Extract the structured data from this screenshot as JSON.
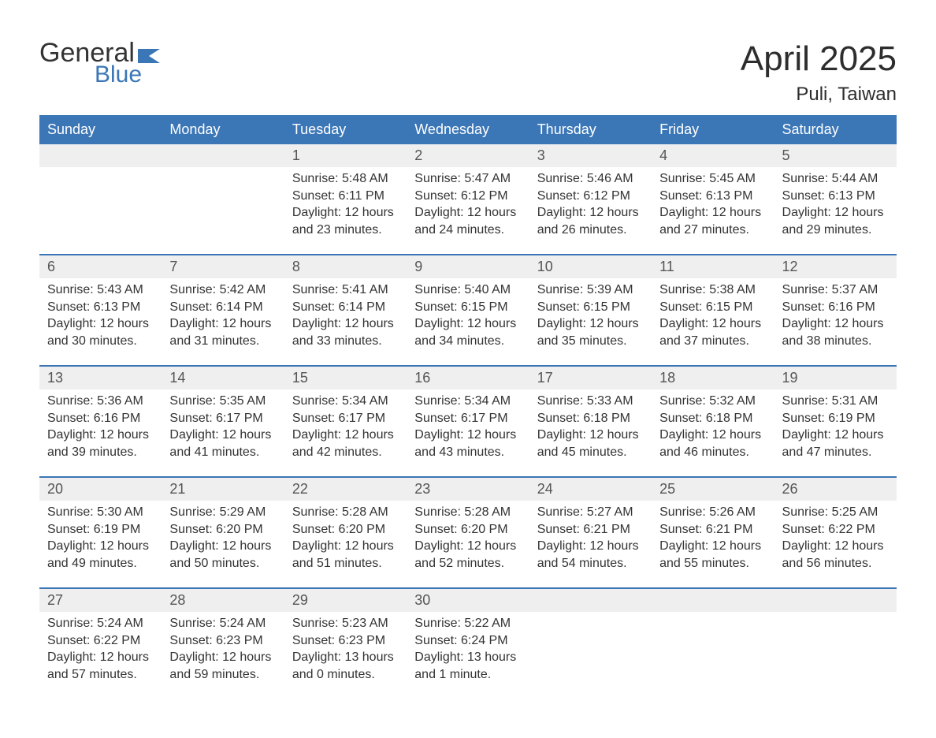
{
  "brand": {
    "word1": "General",
    "word2": "Blue",
    "text_color": "#333333",
    "accent_color": "#3b76b6"
  },
  "title": "April 2025",
  "location": "Puli, Taiwan",
  "colors": {
    "header_bg": "#3b76b6",
    "header_text": "#ffffff",
    "date_row_bg": "#efefef",
    "date_text": "#555555",
    "body_text": "#333333",
    "week_divider": "#3b76b6",
    "background": "#ffffff"
  },
  "typography": {
    "title_fontsize": 44,
    "location_fontsize": 24,
    "header_fontsize": 18,
    "date_fontsize": 18,
    "body_fontsize": 16,
    "font_family": "Arial"
  },
  "day_names": [
    "Sunday",
    "Monday",
    "Tuesday",
    "Wednesday",
    "Thursday",
    "Friday",
    "Saturday"
  ],
  "weeks": [
    {
      "dates": [
        "",
        "",
        "1",
        "2",
        "3",
        "4",
        "5"
      ],
      "cells": [
        {
          "sunrise": "",
          "sunset": "",
          "daylight": ""
        },
        {
          "sunrise": "",
          "sunset": "",
          "daylight": ""
        },
        {
          "sunrise": "Sunrise: 5:48 AM",
          "sunset": "Sunset: 6:11 PM",
          "daylight": "Daylight: 12 hours and 23 minutes."
        },
        {
          "sunrise": "Sunrise: 5:47 AM",
          "sunset": "Sunset: 6:12 PM",
          "daylight": "Daylight: 12 hours and 24 minutes."
        },
        {
          "sunrise": "Sunrise: 5:46 AM",
          "sunset": "Sunset: 6:12 PM",
          "daylight": "Daylight: 12 hours and 26 minutes."
        },
        {
          "sunrise": "Sunrise: 5:45 AM",
          "sunset": "Sunset: 6:13 PM",
          "daylight": "Daylight: 12 hours and 27 minutes."
        },
        {
          "sunrise": "Sunrise: 5:44 AM",
          "sunset": "Sunset: 6:13 PM",
          "daylight": "Daylight: 12 hours and 29 minutes."
        }
      ]
    },
    {
      "dates": [
        "6",
        "7",
        "8",
        "9",
        "10",
        "11",
        "12"
      ],
      "cells": [
        {
          "sunrise": "Sunrise: 5:43 AM",
          "sunset": "Sunset: 6:13 PM",
          "daylight": "Daylight: 12 hours and 30 minutes."
        },
        {
          "sunrise": "Sunrise: 5:42 AM",
          "sunset": "Sunset: 6:14 PM",
          "daylight": "Daylight: 12 hours and 31 minutes."
        },
        {
          "sunrise": "Sunrise: 5:41 AM",
          "sunset": "Sunset: 6:14 PM",
          "daylight": "Daylight: 12 hours and 33 minutes."
        },
        {
          "sunrise": "Sunrise: 5:40 AM",
          "sunset": "Sunset: 6:15 PM",
          "daylight": "Daylight: 12 hours and 34 minutes."
        },
        {
          "sunrise": "Sunrise: 5:39 AM",
          "sunset": "Sunset: 6:15 PM",
          "daylight": "Daylight: 12 hours and 35 minutes."
        },
        {
          "sunrise": "Sunrise: 5:38 AM",
          "sunset": "Sunset: 6:15 PM",
          "daylight": "Daylight: 12 hours and 37 minutes."
        },
        {
          "sunrise": "Sunrise: 5:37 AM",
          "sunset": "Sunset: 6:16 PM",
          "daylight": "Daylight: 12 hours and 38 minutes."
        }
      ]
    },
    {
      "dates": [
        "13",
        "14",
        "15",
        "16",
        "17",
        "18",
        "19"
      ],
      "cells": [
        {
          "sunrise": "Sunrise: 5:36 AM",
          "sunset": "Sunset: 6:16 PM",
          "daylight": "Daylight: 12 hours and 39 minutes."
        },
        {
          "sunrise": "Sunrise: 5:35 AM",
          "sunset": "Sunset: 6:17 PM",
          "daylight": "Daylight: 12 hours and 41 minutes."
        },
        {
          "sunrise": "Sunrise: 5:34 AM",
          "sunset": "Sunset: 6:17 PM",
          "daylight": "Daylight: 12 hours and 42 minutes."
        },
        {
          "sunrise": "Sunrise: 5:34 AM",
          "sunset": "Sunset: 6:17 PM",
          "daylight": "Daylight: 12 hours and 43 minutes."
        },
        {
          "sunrise": "Sunrise: 5:33 AM",
          "sunset": "Sunset: 6:18 PM",
          "daylight": "Daylight: 12 hours and 45 minutes."
        },
        {
          "sunrise": "Sunrise: 5:32 AM",
          "sunset": "Sunset: 6:18 PM",
          "daylight": "Daylight: 12 hours and 46 minutes."
        },
        {
          "sunrise": "Sunrise: 5:31 AM",
          "sunset": "Sunset: 6:19 PM",
          "daylight": "Daylight: 12 hours and 47 minutes."
        }
      ]
    },
    {
      "dates": [
        "20",
        "21",
        "22",
        "23",
        "24",
        "25",
        "26"
      ],
      "cells": [
        {
          "sunrise": "Sunrise: 5:30 AM",
          "sunset": "Sunset: 6:19 PM",
          "daylight": "Daylight: 12 hours and 49 minutes."
        },
        {
          "sunrise": "Sunrise: 5:29 AM",
          "sunset": "Sunset: 6:20 PM",
          "daylight": "Daylight: 12 hours and 50 minutes."
        },
        {
          "sunrise": "Sunrise: 5:28 AM",
          "sunset": "Sunset: 6:20 PM",
          "daylight": "Daylight: 12 hours and 51 minutes."
        },
        {
          "sunrise": "Sunrise: 5:28 AM",
          "sunset": "Sunset: 6:20 PM",
          "daylight": "Daylight: 12 hours and 52 minutes."
        },
        {
          "sunrise": "Sunrise: 5:27 AM",
          "sunset": "Sunset: 6:21 PM",
          "daylight": "Daylight: 12 hours and 54 minutes."
        },
        {
          "sunrise": "Sunrise: 5:26 AM",
          "sunset": "Sunset: 6:21 PM",
          "daylight": "Daylight: 12 hours and 55 minutes."
        },
        {
          "sunrise": "Sunrise: 5:25 AM",
          "sunset": "Sunset: 6:22 PM",
          "daylight": "Daylight: 12 hours and 56 minutes."
        }
      ]
    },
    {
      "dates": [
        "27",
        "28",
        "29",
        "30",
        "",
        "",
        ""
      ],
      "cells": [
        {
          "sunrise": "Sunrise: 5:24 AM",
          "sunset": "Sunset: 6:22 PM",
          "daylight": "Daylight: 12 hours and 57 minutes."
        },
        {
          "sunrise": "Sunrise: 5:24 AM",
          "sunset": "Sunset: 6:23 PM",
          "daylight": "Daylight: 12 hours and 59 minutes."
        },
        {
          "sunrise": "Sunrise: 5:23 AM",
          "sunset": "Sunset: 6:23 PM",
          "daylight": "Daylight: 13 hours and 0 minutes."
        },
        {
          "sunrise": "Sunrise: 5:22 AM",
          "sunset": "Sunset: 6:24 PM",
          "daylight": "Daylight: 13 hours and 1 minute."
        },
        {
          "sunrise": "",
          "sunset": "",
          "daylight": ""
        },
        {
          "sunrise": "",
          "sunset": "",
          "daylight": ""
        },
        {
          "sunrise": "",
          "sunset": "",
          "daylight": ""
        }
      ]
    }
  ]
}
